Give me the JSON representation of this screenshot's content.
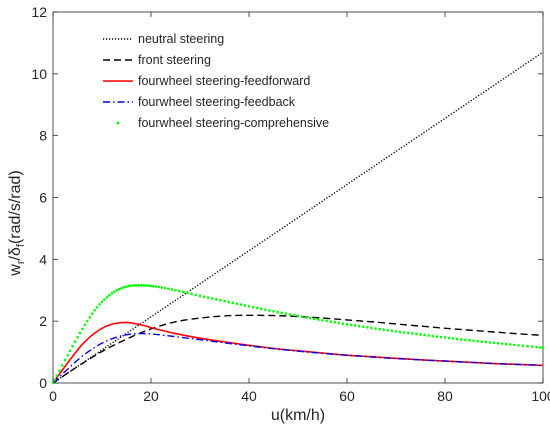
{
  "chart_data": {
    "type": "line",
    "title": "",
    "xlabel": "u(km/h)",
    "ylabel_parts": {
      "base": "w",
      "sub1": "r",
      "mid": "/δ",
      "sub2": "f",
      "tail": "(rad/s/rad)"
    },
    "xlim": [
      0,
      100
    ],
    "ylim": [
      0,
      12
    ],
    "xticks": [
      0,
      20,
      40,
      60,
      80,
      100
    ],
    "yticks": [
      0,
      2,
      4,
      6,
      8,
      10,
      12
    ],
    "grid": false,
    "legend_position": "top-left",
    "series": [
      {
        "name": "neutral steering",
        "color": "#000000",
        "style": "dotted",
        "x": [
          0,
          10,
          20,
          30,
          40,
          50,
          60,
          70,
          80,
          90,
          100
        ],
        "y": [
          0,
          1.07,
          2.14,
          3.21,
          4.28,
          5.35,
          6.42,
          7.49,
          8.56,
          9.63,
          10.7
        ]
      },
      {
        "name": "front steering",
        "color": "#000000",
        "style": "dashed",
        "x": [
          0,
          5,
          10,
          15,
          20,
          25,
          30,
          35,
          40,
          45,
          50,
          55,
          60,
          65,
          70,
          75,
          80,
          85,
          90,
          95,
          100
        ],
        "y": [
          0,
          0.53,
          1.02,
          1.42,
          1.75,
          1.98,
          2.1,
          2.17,
          2.19,
          2.18,
          2.15,
          2.1,
          2.04,
          1.98,
          1.91,
          1.84,
          1.77,
          1.71,
          1.65,
          1.59,
          1.54
        ]
      },
      {
        "name": "fourwheel steering-feedforward",
        "color": "#ff0000",
        "style": "solid",
        "x": [
          0,
          3,
          6,
          9,
          12,
          15,
          18,
          21,
          25,
          30,
          35,
          40,
          45,
          50,
          55,
          60,
          65,
          70,
          75,
          80,
          85,
          90,
          95,
          100
        ],
        "y": [
          0,
          0.65,
          1.25,
          1.67,
          1.9,
          1.96,
          1.88,
          1.75,
          1.6,
          1.45,
          1.33,
          1.22,
          1.12,
          1.04,
          0.97,
          0.9,
          0.85,
          0.8,
          0.75,
          0.71,
          0.67,
          0.63,
          0.6,
          0.57
        ]
      },
      {
        "name": "fourwheel steering-feedback",
        "color": "#0000ff",
        "style": "dashdot",
        "x": [
          0,
          3,
          6,
          9,
          12,
          15,
          18,
          21,
          25,
          30,
          35,
          40,
          45,
          50,
          55,
          60,
          65,
          70,
          75,
          80,
          85,
          90,
          95,
          100
        ],
        "y": [
          0,
          0.45,
          0.87,
          1.2,
          1.43,
          1.56,
          1.6,
          1.57,
          1.5,
          1.4,
          1.3,
          1.2,
          1.11,
          1.03,
          0.96,
          0.9,
          0.84,
          0.79,
          0.75,
          0.71,
          0.67,
          0.63,
          0.6,
          0.57
        ]
      },
      {
        "name": "fourwheel steering-comprehensive",
        "color": "#00ff00",
        "style": "dots",
        "x": [
          0,
          3,
          6,
          9,
          12,
          15,
          18,
          21,
          25,
          30,
          35,
          40,
          45,
          50,
          55,
          60,
          65,
          70,
          75,
          80,
          85,
          90,
          95,
          100
        ],
        "y": [
          0,
          0.9,
          1.75,
          2.45,
          2.9,
          3.12,
          3.16,
          3.12,
          3.0,
          2.82,
          2.65,
          2.48,
          2.32,
          2.17,
          2.03,
          1.9,
          1.78,
          1.67,
          1.57,
          1.47,
          1.38,
          1.3,
          1.22,
          1.14
        ]
      }
    ]
  }
}
